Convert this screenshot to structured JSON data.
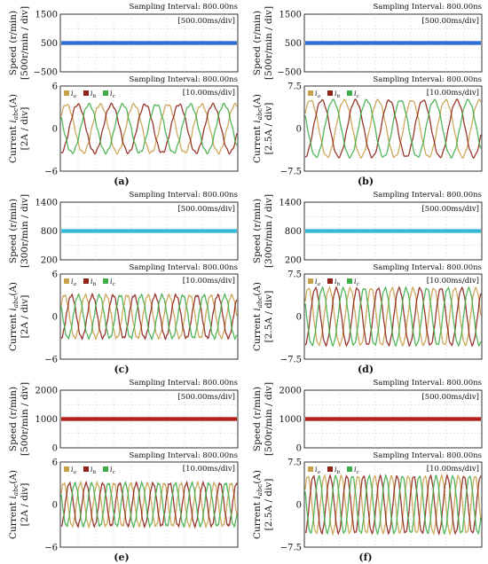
{
  "panels": [
    {
      "label": "(a)",
      "speed": {
        "sampling": "Sampling Interval: 800.00ns",
        "timebase": "[500.00ms/div]",
        "ylabel": "Speed (r/min)",
        "yunit": "[500r/min / div]",
        "ticks": [
          "1500",
          "500",
          "−500"
        ],
        "ylim": [
          -500,
          1500
        ],
        "value": 500,
        "color": "#2f6fd6"
      },
      "current": {
        "sampling": "Sampling Interval: 800.00ns",
        "timebase": "[10.00ms/div]",
        "ylabel": "Current i_abc(A)",
        "yunit": "[2A / div]",
        "ticks": [
          "6",
          "0",
          "−6"
        ],
        "ylim": [
          -6,
          6
        ],
        "amplitude": 3.4,
        "cycles": 5.2,
        "legend": [
          "i_a",
          "i_b",
          "i_c"
        ]
      }
    },
    {
      "label": "(b)",
      "speed": {
        "sampling": "Sampling Interval: 800.00ns",
        "timebase": "[500.00ms/div]",
        "ylabel": "Speed (r/min)",
        "yunit": "[500r/min / div]",
        "ticks": [
          "1500",
          "500",
          "−500"
        ],
        "ylim": [
          -500,
          1500
        ],
        "value": 500,
        "color": "#2f6fd6"
      },
      "current": {
        "sampling": "Sampling Interval: 800.00ns",
        "timebase": "[10.00ms/div]",
        "ylabel": "Current i_abc(A)",
        "yunit": "[2.5A / div]",
        "ticks": [
          "7.5",
          "0",
          "−7.5"
        ],
        "ylim": [
          -7.5,
          7.5
        ],
        "amplitude": 5.0,
        "cycles": 5.2,
        "legend": [
          "i_a",
          "i_b",
          "i_c"
        ]
      }
    },
    {
      "label": "(c)",
      "speed": {
        "sampling": "Sampling Interval: 800.00ns",
        "timebase": "[500.00ms/div]",
        "ylabel": "Speed (r/min)",
        "yunit": "[300r/min / div]",
        "ticks": [
          "1400",
          "800",
          "200"
        ],
        "ylim": [
          200,
          1400
        ],
        "value": 800,
        "color": "#38b8d8"
      },
      "current": {
        "sampling": "Sampling Interval: 800.00ns",
        "timebase": "[10.00ms/div]",
        "ylabel": "Current i_abc(A)",
        "yunit": "[2A / div]",
        "ticks": [
          "6",
          "0",
          "−6"
        ],
        "ylim": [
          -6,
          6
        ],
        "amplitude": 3.0,
        "cycles": 8.4,
        "legend": [
          "i_a",
          "i_b",
          "i_c"
        ]
      }
    },
    {
      "label": "(d)",
      "speed": {
        "sampling": "Sampling Interval: 800.00ns",
        "timebase": "[500.00ms/div]",
        "ylabel": "Speed (r/min)",
        "yunit": "[300r/min / div]",
        "ticks": [
          "1400",
          "800",
          "200"
        ],
        "ylim": [
          200,
          1400
        ],
        "value": 800,
        "color": "#38b8d8"
      },
      "current": {
        "sampling": "Sampling Interval: 800.00ns",
        "timebase": "[10.00ms/div]",
        "ylabel": "Current i_abc(A)",
        "yunit": "[2.5A / div]",
        "ticks": [
          "7.5",
          "0",
          "−7.5"
        ],
        "ylim": [
          -7.5,
          7.5
        ],
        "amplitude": 5.0,
        "cycles": 8.4,
        "legend": [
          "i_a",
          "i_b",
          "i_c"
        ]
      }
    },
    {
      "label": "(e)",
      "speed": {
        "sampling": "Sampling Interval: 800.00ns",
        "timebase": "[500.00ms/div]",
        "ylabel": "Speed (r/min)",
        "yunit": "[500r/min / div]",
        "ticks": [
          "2000",
          "1000",
          "0"
        ],
        "ylim": [
          0,
          2000
        ],
        "value": 1000,
        "color": "#b3221b"
      },
      "current": {
        "sampling": "Sampling Interval: 800.00ns",
        "timebase": "[10.00ms/div]",
        "ylabel": "Current i_abc(A)",
        "yunit": "[2A / div]",
        "ticks": [
          "6",
          "0",
          "−6"
        ],
        "ylim": [
          -6,
          6
        ],
        "amplitude": 3.0,
        "cycles": 10.5,
        "legend": [
          "i_a",
          "i_b",
          "i_c"
        ]
      }
    },
    {
      "label": "(f)",
      "speed": {
        "sampling": "Sampling Interval: 800.00ns",
        "timebase": "[500.00ms/div]",
        "ylabel": "Speed (r/min)",
        "yunit": "[500r/min / div]",
        "ticks": [
          "2000",
          "1000",
          "0"
        ],
        "ylim": [
          0,
          2000
        ],
        "value": 1000,
        "color": "#b3221b"
      },
      "current": {
        "sampling": "Sampling Interval: 800.00ns",
        "timebase": "[10.00ms/div]",
        "ylabel": "Current i_abc(A)",
        "yunit": "[2.5A / div]",
        "ticks": [
          "7.5",
          "0",
          "−7.5"
        ],
        "ylim": [
          -7.5,
          7.5
        ],
        "amplitude": 5.0,
        "cycles": 10.5,
        "legend": [
          "i_a",
          "i_b",
          "i_c"
        ]
      }
    }
  ],
  "colors": {
    "phase_a": "#c9a14a",
    "phase_b": "#8e2418",
    "phase_c": "#3fae48",
    "grid": "#cfcfcf"
  },
  "chart_data": [
    {
      "type": "line",
      "title": "(a) speed",
      "ylabel": "Speed (r/min)",
      "ylim": [
        -500,
        1500
      ],
      "series": [
        {
          "values": [
            500,
            500
          ]
        }
      ]
    },
    {
      "type": "line",
      "title": "(a) current",
      "ylabel": "Current i_abc(A)",
      "ylim": [
        -6,
        6
      ],
      "series": [
        {
          "name": "i_a",
          "amplitude": 3.4
        },
        {
          "name": "i_b",
          "amplitude": 3.4
        },
        {
          "name": "i_c",
          "amplitude": 3.4
        }
      ]
    },
    {
      "type": "line",
      "title": "(b) speed",
      "ylabel": "Speed (r/min)",
      "ylim": [
        -500,
        1500
      ],
      "series": [
        {
          "values": [
            500,
            500
          ]
        }
      ]
    },
    {
      "type": "line",
      "title": "(b) current",
      "ylabel": "Current i_abc(A)",
      "ylim": [
        -7.5,
        7.5
      ],
      "series": [
        {
          "name": "i_a",
          "amplitude": 5.0
        },
        {
          "name": "i_b",
          "amplitude": 5.0
        },
        {
          "name": "i_c",
          "amplitude": 5.0
        }
      ]
    },
    {
      "type": "line",
      "title": "(c) speed",
      "ylabel": "Speed (r/min)",
      "ylim": [
        200,
        1400
      ],
      "series": [
        {
          "values": [
            800,
            800
          ]
        }
      ]
    },
    {
      "type": "line",
      "title": "(c) current",
      "ylabel": "Current i_abc(A)",
      "ylim": [
        -6,
        6
      ],
      "series": [
        {
          "name": "i_a",
          "amplitude": 3.0
        },
        {
          "name": "i_b",
          "amplitude": 3.0
        },
        {
          "name": "i_c",
          "amplitude": 3.0
        }
      ]
    },
    {
      "type": "line",
      "title": "(d) speed",
      "ylabel": "Speed (r/min)",
      "ylim": [
        200,
        1400
      ],
      "series": [
        {
          "values": [
            800,
            800
          ]
        }
      ]
    },
    {
      "type": "line",
      "title": "(d) current",
      "ylabel": "Current i_abc(A)",
      "ylim": [
        -7.5,
        7.5
      ],
      "series": [
        {
          "name": "i_a",
          "amplitude": 5.0
        },
        {
          "name": "i_b",
          "amplitude": 5.0
        },
        {
          "name": "i_c",
          "amplitude": 5.0
        }
      ]
    },
    {
      "type": "line",
      "title": "(e) speed",
      "ylabel": "Speed (r/min)",
      "ylim": [
        0,
        2000
      ],
      "series": [
        {
          "values": [
            1000,
            1000
          ]
        }
      ]
    },
    {
      "type": "line",
      "title": "(e) current",
      "ylabel": "Current i_abc(A)",
      "ylim": [
        -6,
        6
      ],
      "series": [
        {
          "name": "i_a",
          "amplitude": 3.0
        },
        {
          "name": "i_b",
          "amplitude": 3.0
        },
        {
          "name": "i_c",
          "amplitude": 3.0
        }
      ]
    },
    {
      "type": "line",
      "title": "(f) speed",
      "ylabel": "Speed (r/min)",
      "ylim": [
        0,
        2000
      ],
      "series": [
        {
          "values": [
            1000,
            1000
          ]
        }
      ]
    },
    {
      "type": "line",
      "title": "(f) current",
      "ylabel": "Current i_abc(A)",
      "ylim": [
        -7.5,
        7.5
      ],
      "series": [
        {
          "name": "i_a",
          "amplitude": 5.0
        },
        {
          "name": "i_b",
          "amplitude": 5.0
        },
        {
          "name": "i_c",
          "amplitude": 5.0
        }
      ]
    }
  ]
}
